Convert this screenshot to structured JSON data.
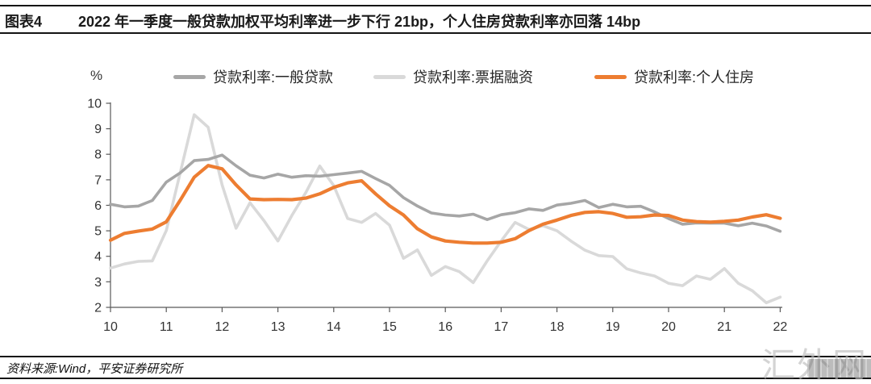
{
  "header": {
    "label": "图表4",
    "title": "2022 年一季度一般贷款加权平均利率进一步下行 21bp，个人住房贷款利率亦回落 14bp"
  },
  "chart_data": {
    "type": "line",
    "unit_label": "%",
    "grid": false,
    "legend_position": "top",
    "xlim": [
      10,
      22
    ],
    "ylim": [
      2,
      10
    ],
    "xticks": [
      10,
      11,
      12,
      13,
      14,
      15,
      16,
      17,
      18,
      19,
      20,
      21,
      22
    ],
    "yticks": [
      2,
      3,
      4,
      5,
      6,
      7,
      8,
      9,
      10
    ],
    "x": [
      10,
      10.25,
      10.5,
      10.75,
      11,
      11.25,
      11.5,
      11.75,
      12,
      12.25,
      12.5,
      12.75,
      13,
      13.25,
      13.5,
      13.75,
      14,
      14.25,
      14.5,
      14.75,
      15,
      15.25,
      15.5,
      15.75,
      16,
      16.25,
      16.5,
      16.75,
      17,
      17.25,
      17.5,
      17.75,
      18,
      18.25,
      18.5,
      18.75,
      19,
      19.25,
      19.5,
      19.75,
      20,
      20.25,
      20.5,
      20.75,
      21,
      21.25,
      21.5,
      21.75,
      22
    ],
    "series": [
      {
        "name": "贷款利率:一般贷款",
        "color": "#a6a6a6",
        "width": 3.6,
        "values": [
          6.04,
          5.94,
          5.97,
          6.19,
          6.91,
          7.27,
          7.75,
          7.8,
          7.97,
          7.55,
          7.18,
          7.07,
          7.22,
          7.1,
          7.16,
          7.14,
          7.2,
          7.26,
          7.33,
          7.05,
          6.78,
          6.3,
          5.97,
          5.7,
          5.62,
          5.58,
          5.65,
          5.44,
          5.63,
          5.71,
          5.86,
          5.8,
          6.01,
          6.08,
          6.19,
          5.91,
          6.04,
          5.94,
          5.96,
          5.74,
          5.48,
          5.26,
          5.31,
          5.3,
          5.3,
          5.2,
          5.3,
          5.19,
          4.98
        ]
      },
      {
        "name": "贷款利率:票据融资",
        "color": "#d9d9d9",
        "width": 3.6,
        "values": [
          3.54,
          3.7,
          3.8,
          3.82,
          5.01,
          7.28,
          9.55,
          9.06,
          6.8,
          5.1,
          6.1,
          5.4,
          4.6,
          5.6,
          6.5,
          7.54,
          6.77,
          5.48,
          5.33,
          5.68,
          5.22,
          3.92,
          4.25,
          3.25,
          3.6,
          3.4,
          2.97,
          3.82,
          4.6,
          5.33,
          5.05,
          5.2,
          5.0,
          4.6,
          4.24,
          4.03,
          3.99,
          3.51,
          3.35,
          3.23,
          2.94,
          2.85,
          3.23,
          3.1,
          3.52,
          2.94,
          2.65,
          2.18,
          2.4
        ]
      },
      {
        "name": "贷款利率:个人住房",
        "color": "#ed7d31",
        "width": 4.2,
        "values": [
          4.63,
          4.9,
          4.99,
          5.07,
          5.35,
          6.2,
          7.1,
          7.56,
          7.43,
          6.8,
          6.25,
          6.22,
          6.23,
          6.22,
          6.28,
          6.45,
          6.7,
          6.88,
          6.96,
          6.45,
          5.98,
          5.62,
          5.08,
          4.76,
          4.6,
          4.55,
          4.52,
          4.52,
          4.55,
          4.69,
          5.01,
          5.26,
          5.42,
          5.6,
          5.72,
          5.75,
          5.68,
          5.53,
          5.55,
          5.62,
          5.6,
          5.42,
          5.36,
          5.34,
          5.37,
          5.42,
          5.54,
          5.63,
          5.49
        ]
      }
    ]
  },
  "footer": {
    "source": "资料来源:Wind，平安证券研究所"
  },
  "watermark": {
    "text": "汇外网"
  }
}
